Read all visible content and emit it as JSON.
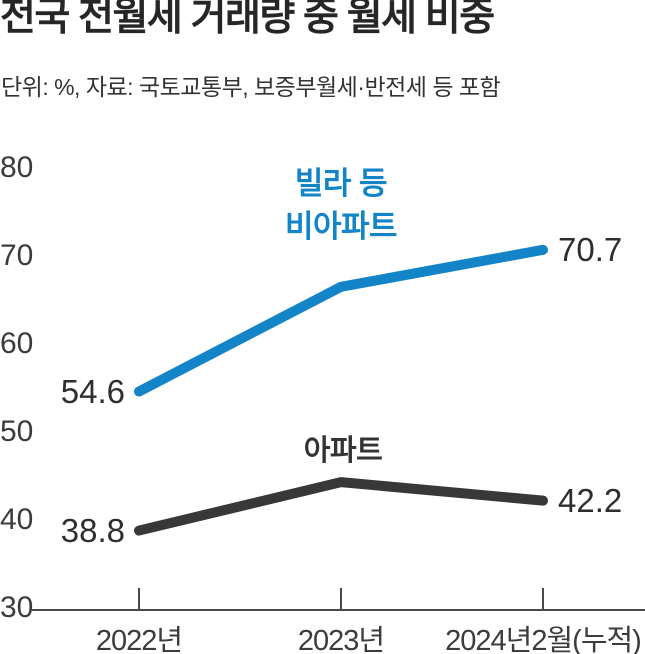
{
  "header": {
    "title": "전국 전월세 거래량 중 월세 비중",
    "subtitle": "단위: %, 자료: 국토교통부, 보증부월세·반전세 등 포함"
  },
  "chart_data": {
    "type": "line",
    "title": "전국 전월세 거래량 중 월세 비중",
    "unit": "%",
    "source": "국토교통부",
    "categories": [
      "2022년",
      "2023년",
      "2024년2월(누적)"
    ],
    "series": [
      {
        "name": "빌라 등 비아파트",
        "name_lines": [
          "빌라 등",
          "비아파트"
        ],
        "color": "#1484c8",
        "values": [
          54.6,
          66.5,
          70.7
        ],
        "value_labels": [
          "54.6",
          null,
          "70.7"
        ]
      },
      {
        "name": "아파트",
        "name_lines": [
          "아파트"
        ],
        "color": "#383838",
        "values": [
          38.8,
          44.3,
          42.2
        ],
        "value_labels": [
          "38.8",
          null,
          "42.2"
        ]
      }
    ],
    "yticks": [
      80,
      70,
      60,
      50,
      40,
      30
    ],
    "ylim": [
      30,
      80
    ],
    "grid": false,
    "legend_position": "inline-above-lines",
    "axis_color": "#4a4a4a"
  }
}
